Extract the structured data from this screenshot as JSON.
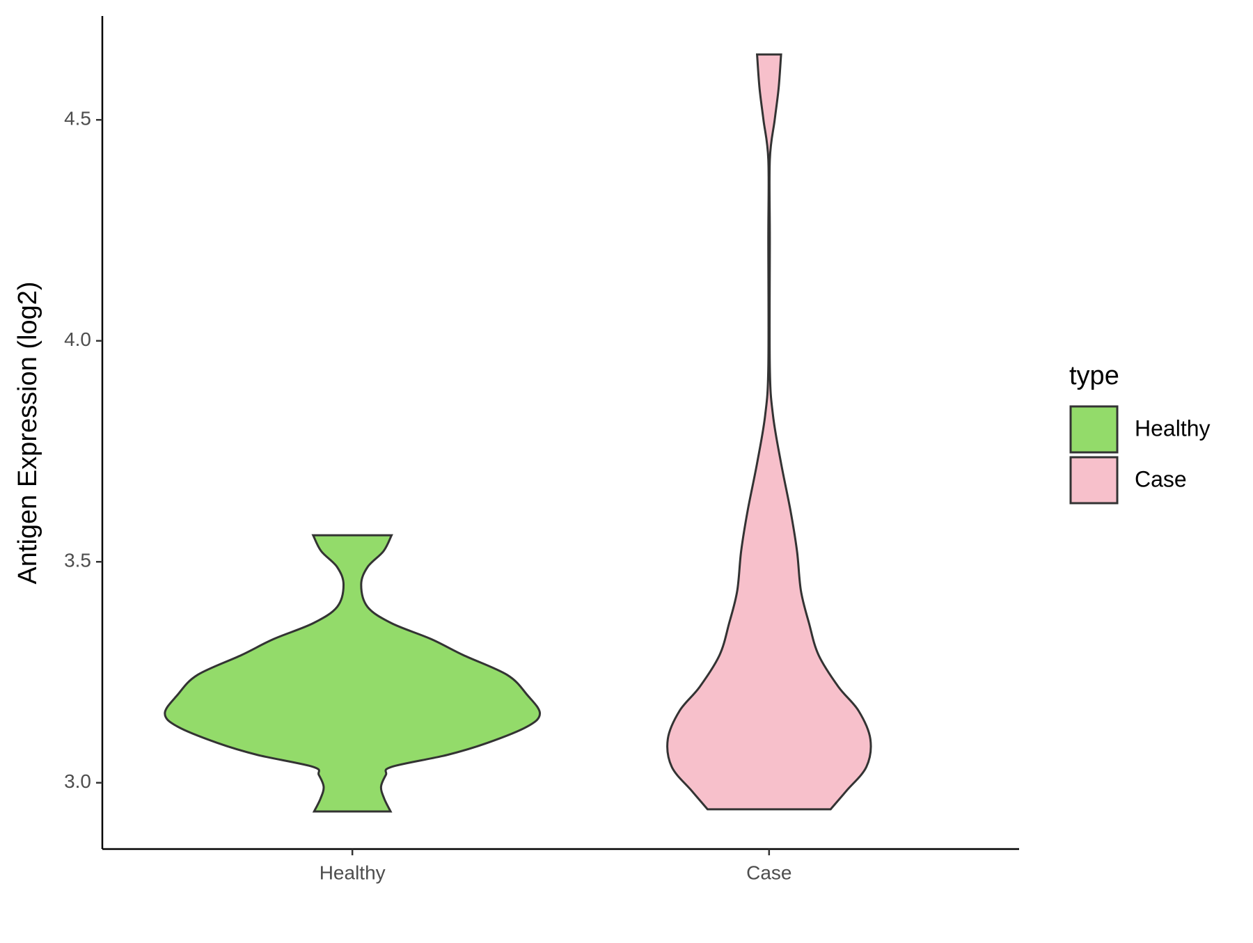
{
  "chart_data": {
    "type": "violin",
    "y_label": "Antigen Expression (log2)",
    "categories": [
      "Healthy",
      "Case"
    ],
    "legend_title": "type",
    "series": [
      {
        "name": "Healthy",
        "color": "#93db6a",
        "y": [
          2.935,
          2.964,
          2.991,
          3.018,
          3.036,
          3.063,
          3.09,
          3.127,
          3.157,
          3.199,
          3.244,
          3.289,
          3.325,
          3.361,
          3.398,
          3.448,
          3.488,
          3.524,
          3.56
        ],
        "density": [
          0.204,
          0.17,
          0.153,
          0.179,
          0.209,
          0.506,
          0.719,
          0.932,
          1,
          0.932,
          0.826,
          0.591,
          0.421,
          0.209,
          0.081,
          0.047,
          0.081,
          0.166,
          0.209
        ]
      },
      {
        "name": "Case",
        "color": "#f7c0cb",
        "y": [
          2.94,
          2.982,
          3.036,
          3.099,
          3.163,
          3.217,
          3.289,
          3.361,
          3.434,
          3.524,
          3.614,
          3.723,
          3.831,
          3.94,
          4.229,
          4.41,
          4.5,
          4.572,
          4.648
        ],
        "density": [
          0.328,
          0.413,
          0.519,
          0.54,
          0.477,
          0.37,
          0.264,
          0.213,
          0.17,
          0.149,
          0.115,
          0.064,
          0.021,
          0.004,
          0.004,
          0.004,
          0.03,
          0.051,
          0.064
        ]
      }
    ],
    "ylim": [
      2.85,
      4.735
    ],
    "yticks": [
      {
        "value": 3,
        "label": "3.0"
      },
      {
        "value": 3.5,
        "label": "3.5"
      },
      {
        "value": 4,
        "label": "4.0"
      },
      {
        "value": 4.5,
        "label": "4.5"
      }
    ]
  }
}
